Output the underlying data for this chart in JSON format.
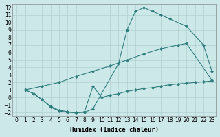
{
  "xlabel": "Humidex (Indice chaleur)",
  "xlim": [
    -0.5,
    23.5
  ],
  "ylim": [
    -2.5,
    12.5
  ],
  "xticks": [
    0,
    1,
    2,
    3,
    4,
    5,
    6,
    7,
    8,
    9,
    10,
    11,
    12,
    13,
    14,
    15,
    16,
    17,
    18,
    19,
    20,
    21,
    22,
    23
  ],
  "yticks": [
    -2,
    -1,
    0,
    1,
    2,
    3,
    4,
    5,
    6,
    7,
    8,
    9,
    10,
    11,
    12
  ],
  "bg_color": "#cde8e8",
  "line_color": "#2e7d7d",
  "grid_color": "#b0d0d0",
  "curve1_x": [
    1,
    2,
    3,
    4,
    5,
    6,
    7,
    8,
    9,
    12,
    13,
    14,
    15,
    16,
    17,
    18,
    20,
    22,
    23
  ],
  "curve1_y": [
    1.0,
    0.5,
    -0.3,
    -1.3,
    -1.8,
    -2.0,
    -2.0,
    -2.0,
    -1.5,
    4.5,
    9.0,
    11.5,
    12.0,
    11.5,
    11.0,
    10.5,
    9.5,
    7.0,
    3.5
  ],
  "curve2_x": [
    1,
    3,
    5,
    7,
    9,
    11,
    13,
    15,
    17,
    19,
    20,
    23
  ],
  "curve2_y": [
    1.0,
    1.5,
    2.0,
    2.8,
    3.5,
    4.2,
    5.0,
    5.8,
    6.5,
    7.0,
    7.2,
    2.3
  ],
  "curve3_x": [
    1,
    2,
    3,
    4,
    5,
    6,
    7,
    8,
    9,
    10,
    11,
    12,
    13,
    14,
    15,
    16,
    17,
    18,
    19,
    20,
    21,
    22,
    23
  ],
  "curve3_y": [
    1.0,
    0.5,
    -0.3,
    -1.2,
    -1.7,
    -1.9,
    -2.1,
    -1.9,
    1.5,
    0.0,
    0.3,
    0.5,
    0.8,
    1.0,
    1.2,
    1.3,
    1.5,
    1.7,
    1.8,
    1.9,
    2.0,
    2.1,
    2.2
  ]
}
